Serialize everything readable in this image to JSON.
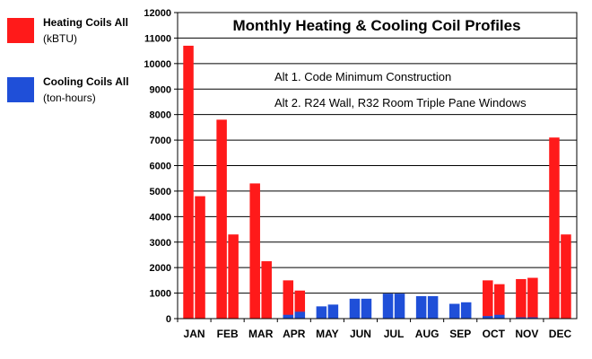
{
  "legend": {
    "heating_name": "Heating Coils All",
    "heating_unit": "(kBTU)",
    "heating_color": "#ff1a1a",
    "cooling_name": "Cooling Coils All",
    "cooling_unit": "(ton-hours)",
    "cooling_color": "#1f4fd8"
  },
  "chart_data": {
    "type": "bar",
    "title": "Monthly Heating & Cooling Coil Profiles",
    "annotations": [
      "Alt 1. Code Minimum Construction",
      "Alt 2. R24 Wall, R32 Room Triple Pane Windows"
    ],
    "categories": [
      "JAN",
      "FEB",
      "MAR",
      "APR",
      "MAY",
      "JUN",
      "JUL",
      "AUG",
      "SEP",
      "OCT",
      "NOV",
      "DEC"
    ],
    "ylim": [
      0,
      12000
    ],
    "yticks": [
      0,
      1000,
      2000,
      3000,
      4000,
      5000,
      6000,
      7000,
      8000,
      9000,
      10000,
      11000,
      12000
    ],
    "grid": true,
    "legend_position": "left",
    "alternatives": [
      "Alt 1",
      "Alt 2"
    ],
    "series": [
      {
        "name": "Heating Coils All",
        "alternative": "Alt 1",
        "color": "#ff1a1a",
        "values": [
          10700,
          7800,
          5300,
          1500,
          0,
          0,
          0,
          0,
          0,
          1500,
          1550,
          7100
        ]
      },
      {
        "name": "Heating Coils All",
        "alternative": "Alt 2",
        "color": "#ff1a1a",
        "values": [
          4800,
          3300,
          2250,
          1100,
          0,
          0,
          0,
          0,
          0,
          1350,
          1600,
          3300
        ]
      },
      {
        "name": "Cooling Coils All",
        "alternative": "Alt 1",
        "color": "#1f4fd8",
        "values": [
          0,
          0,
          0,
          150,
          480,
          780,
          980,
          880,
          580,
          100,
          50,
          0
        ]
      },
      {
        "name": "Cooling Coils All",
        "alternative": "Alt 2",
        "color": "#1f4fd8",
        "values": [
          0,
          0,
          0,
          270,
          550,
          780,
          980,
          880,
          640,
          150,
          50,
          0
        ]
      }
    ]
  }
}
